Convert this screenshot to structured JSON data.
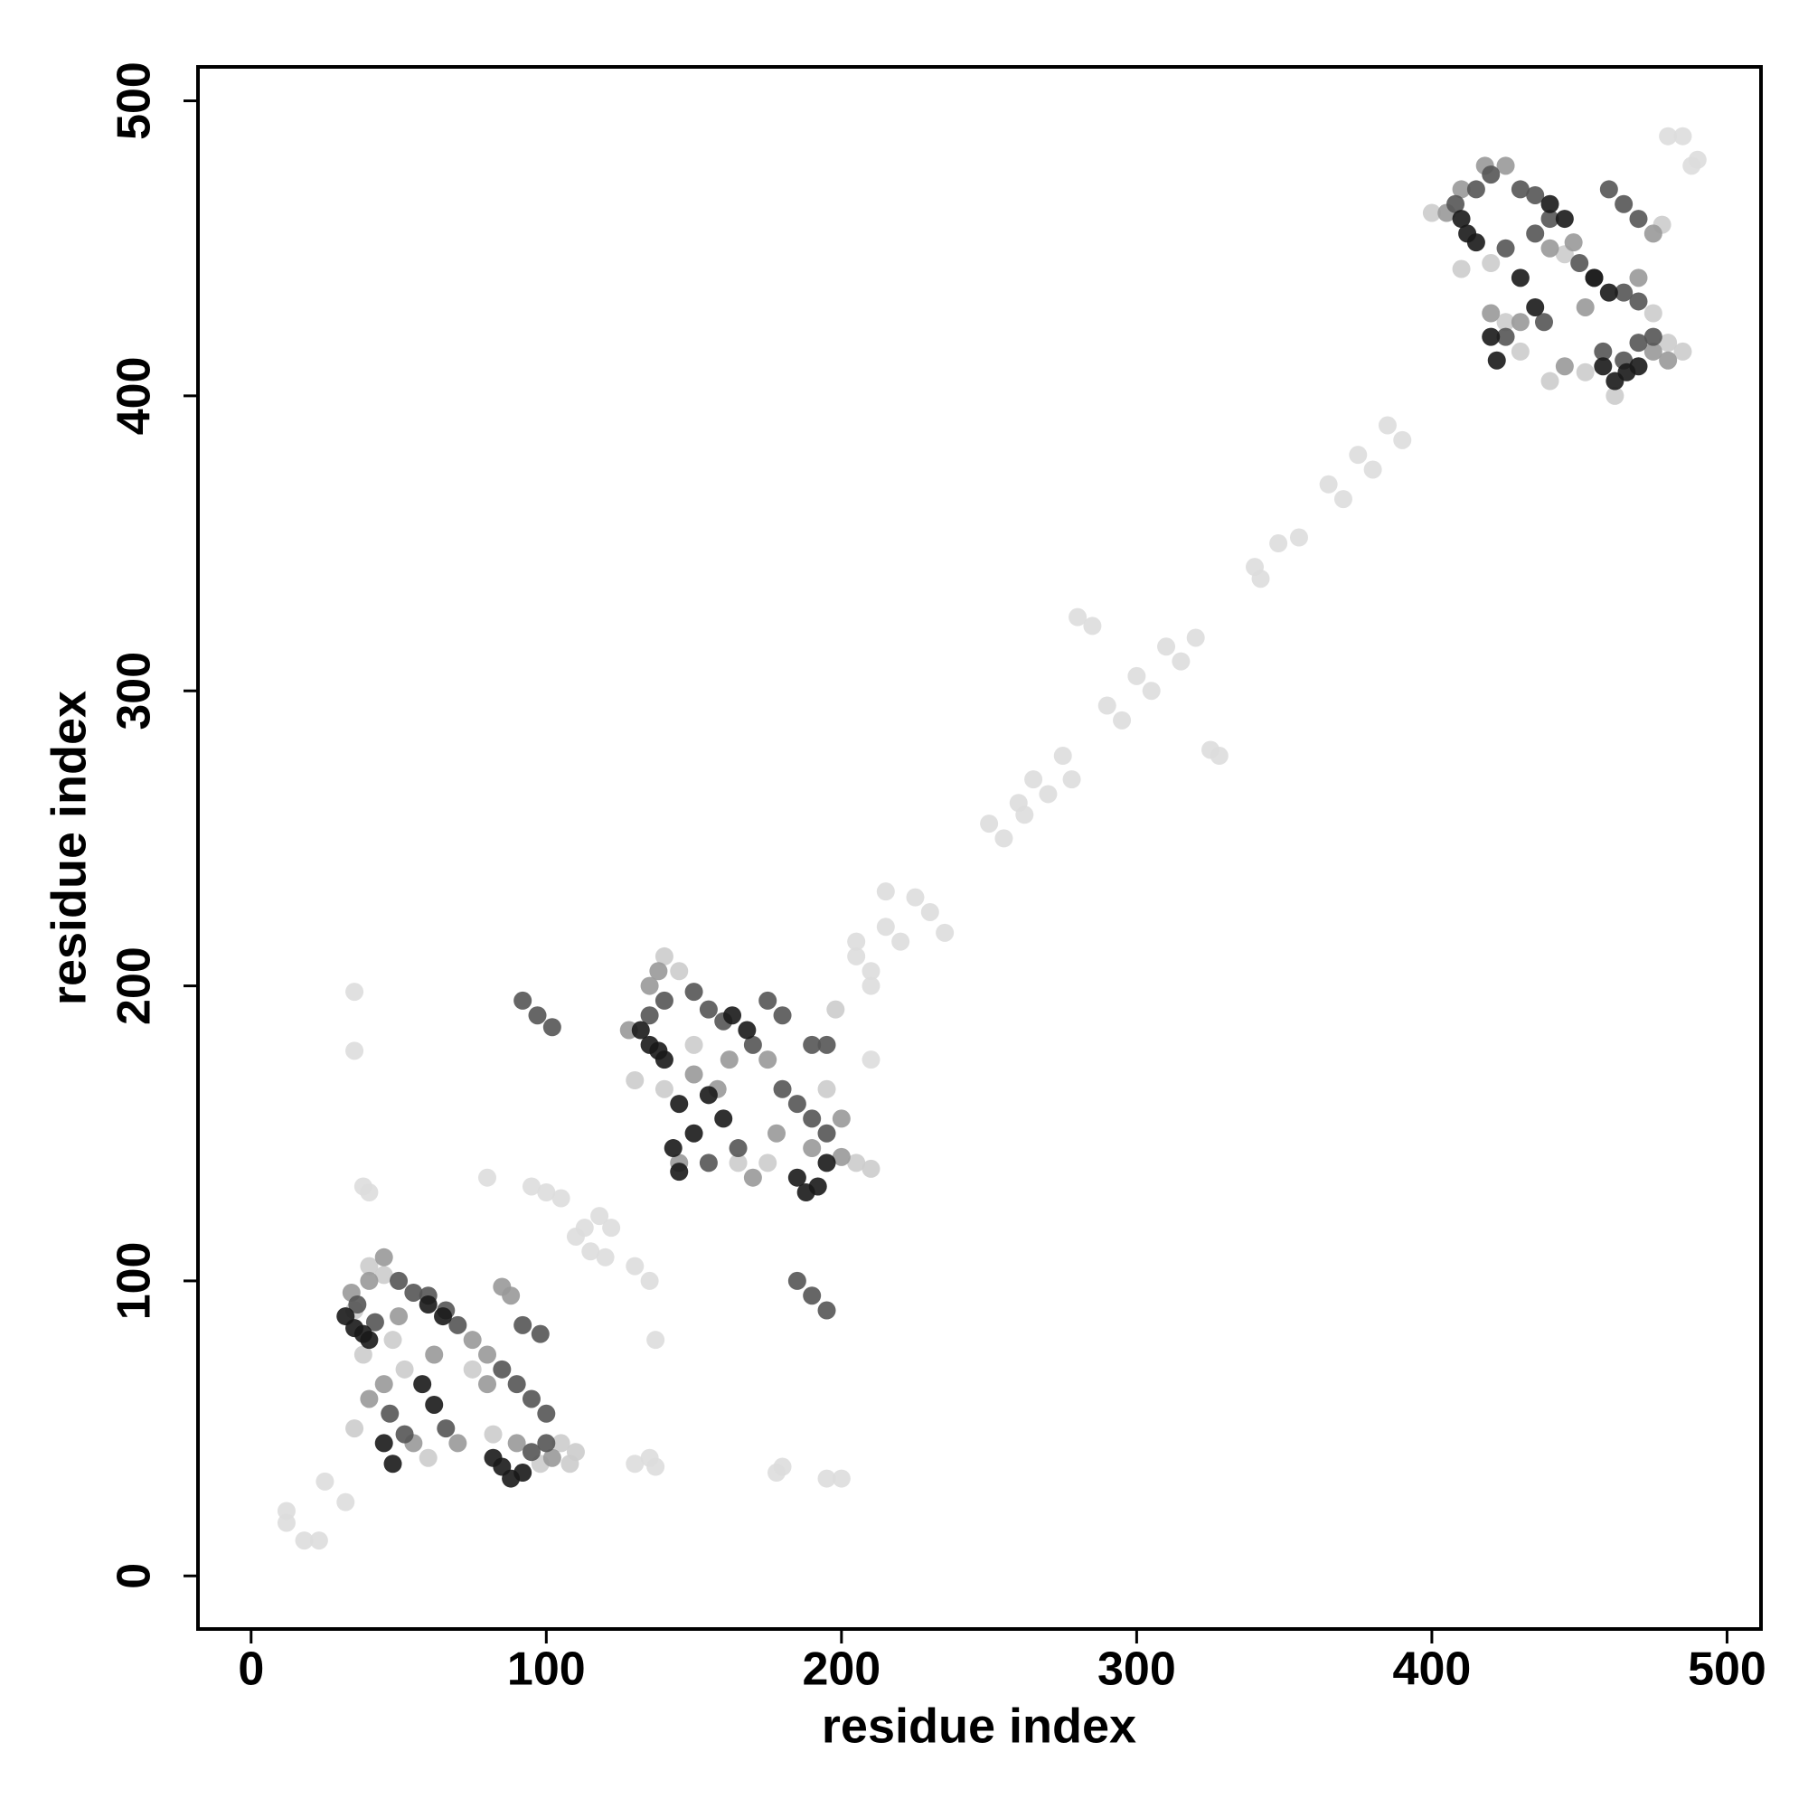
{
  "chart_data": {
    "type": "scatter",
    "xlabel": "residue index",
    "ylabel": "residue index",
    "xlim": [
      -18,
      511.5
    ],
    "ylim": [
      -18,
      511.5
    ],
    "xticks": [
      0,
      100,
      200,
      300,
      400,
      500
    ],
    "yticks": [
      0,
      100,
      200,
      300,
      400,
      500
    ],
    "series": [
      {
        "color": "#dddddd",
        "x": [
          12,
          12,
          18,
          23,
          25,
          32,
          110,
          115,
          118,
          122,
          120,
          113,
          205,
          210,
          215,
          220,
          225,
          230,
          235,
          215,
          210,
          205,
          250,
          255,
          260,
          262,
          265,
          270,
          275,
          290,
          295,
          300,
          305,
          310,
          315,
          320,
          340,
          342,
          348,
          355,
          365,
          370,
          375,
          380,
          385,
          390,
          280,
          285,
          325,
          328,
          278,
          35,
          35,
          38,
          40,
          135,
          137,
          180,
          195,
          200,
          178,
          80,
          95,
          100,
          105,
          130,
          135,
          137,
          130,
          210,
          480,
          485,
          490,
          488
        ],
        "y": [
          22,
          18,
          12,
          12,
          32,
          25,
          115,
          110,
          122,
          118,
          108,
          118,
          210,
          205,
          220,
          215,
          230,
          225,
          218,
          232,
          200,
          215,
          255,
          250,
          262,
          258,
          270,
          265,
          278,
          295,
          290,
          305,
          300,
          315,
          310,
          318,
          342,
          338,
          350,
          352,
          370,
          365,
          380,
          375,
          390,
          385,
          325,
          322,
          280,
          278,
          270,
          198,
          178,
          132,
          130,
          40,
          37,
          37,
          33,
          33,
          35,
          135,
          132,
          130,
          128,
          105,
          100,
          80,
          38,
          175,
          488,
          488,
          480,
          478
        ]
      },
      {
        "color": "#cccccc",
        "x": [
          40,
          45,
          35,
          48,
          52,
          75,
          82,
          98,
          105,
          110,
          108,
          35,
          60,
          38,
          130,
          140,
          150,
          165,
          175,
          195,
          205,
          210,
          140,
          145,
          198,
          420,
          410,
          430,
          440,
          452,
          462,
          480,
          485,
          425,
          475,
          445,
          400,
          478
        ],
        "y": [
          105,
          102,
          90,
          80,
          70,
          70,
          48,
          38,
          45,
          42,
          38,
          50,
          40,
          75,
          168,
          165,
          180,
          140,
          140,
          165,
          140,
          138,
          210,
          205,
          192,
          445,
          443,
          415,
          405,
          408,
          400,
          418,
          415,
          425,
          428,
          448,
          462,
          458
        ]
      },
      {
        "color": "#999999",
        "x": [
          34,
          40,
          45,
          50,
          75,
          80,
          85,
          88,
          80,
          90,
          102,
          70,
          55,
          45,
          40,
          62,
          135,
          138,
          150,
          158,
          162,
          175,
          190,
          200,
          178,
          200,
          145,
          170,
          128,
          405,
          410,
          418,
          425,
          440,
          448,
          452,
          475,
          480,
          430,
          420,
          445,
          475,
          470
        ],
        "y": [
          96,
          100,
          108,
          88,
          80,
          75,
          98,
          95,
          65,
          45,
          40,
          45,
          45,
          65,
          60,
          75,
          200,
          205,
          170,
          165,
          175,
          175,
          145,
          142,
          150,
          155,
          140,
          135,
          185,
          462,
          470,
          478,
          478,
          450,
          452,
          430,
          415,
          412,
          425,
          428,
          410,
          455,
          440
        ]
      },
      {
        "color": "#555555",
        "x": [
          36,
          42,
          50,
          55,
          60,
          66,
          70,
          85,
          90,
          95,
          100,
          92,
          98,
          47,
          52,
          66,
          100,
          95,
          135,
          140,
          150,
          155,
          160,
          170,
          180,
          185,
          190,
          195,
          190,
          195,
          175,
          180,
          155,
          165,
          185,
          190,
          195,
          92,
          97,
          102,
          408,
          415,
          420,
          430,
          435,
          440,
          450,
          455,
          465,
          470,
          460,
          465,
          475,
          470,
          425,
          435,
          458,
          465,
          470,
          438,
          425
        ],
        "y": [
          92,
          86,
          100,
          96,
          95,
          90,
          85,
          70,
          65,
          60,
          55,
          85,
          82,
          55,
          48,
          50,
          45,
          42,
          190,
          195,
          198,
          192,
          188,
          180,
          165,
          160,
          155,
          150,
          180,
          180,
          195,
          190,
          140,
          145,
          100,
          95,
          90,
          195,
          190,
          186,
          465,
          470,
          475,
          470,
          468,
          460,
          445,
          440,
          435,
          432,
          470,
          465,
          420,
          460,
          450,
          455,
          415,
          412,
          418,
          425,
          420
        ]
      },
      {
        "color": "#1a1a1a",
        "x": [
          32,
          35,
          38,
          40,
          45,
          48,
          58,
          62,
          82,
          85,
          88,
          92,
          60,
          65,
          132,
          135,
          138,
          140,
          145,
          150,
          155,
          160,
          185,
          188,
          192,
          195,
          163,
          168,
          143,
          145,
          410,
          412,
          415,
          420,
          422,
          430,
          435,
          458,
          462,
          466,
          470,
          440,
          445,
          455,
          460
        ],
        "y": [
          88,
          84,
          82,
          80,
          45,
          38,
          65,
          58,
          40,
          37,
          33,
          35,
          92,
          88,
          185,
          180,
          178,
          175,
          160,
          150,
          163,
          155,
          135,
          130,
          132,
          140,
          190,
          185,
          145,
          137,
          460,
          455,
          452,
          420,
          412,
          440,
          430,
          410,
          405,
          408,
          410,
          465,
          460,
          440,
          435
        ]
      }
    ]
  }
}
